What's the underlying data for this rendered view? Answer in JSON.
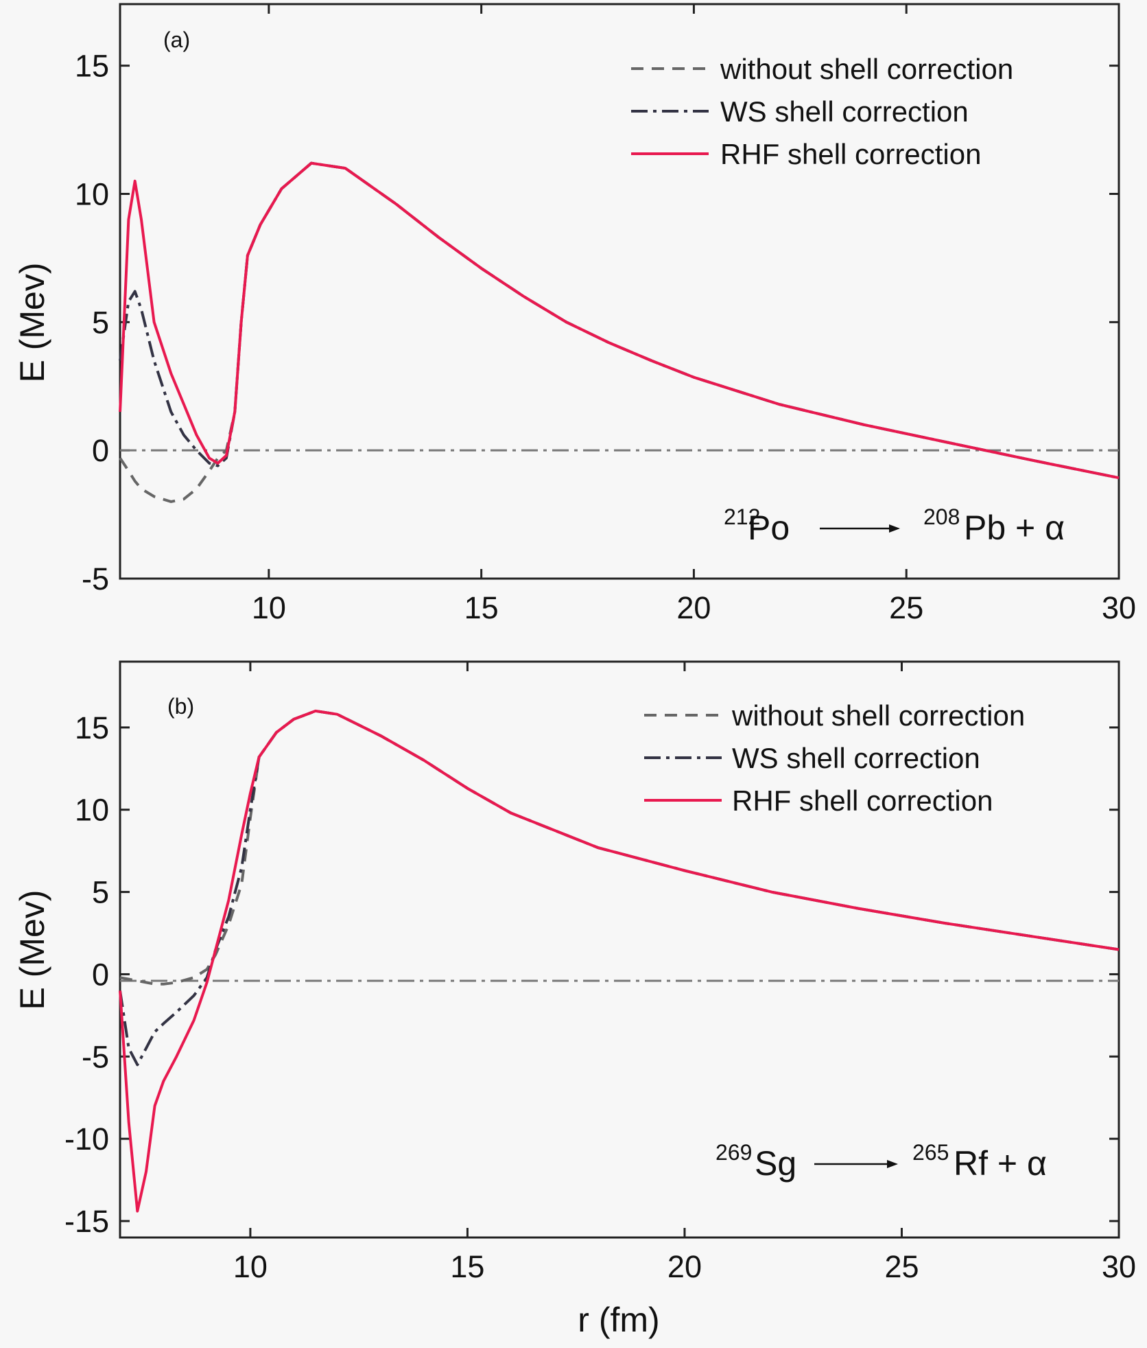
{
  "chart_data": [
    {
      "type": "line",
      "panel_label": "(a)",
      "y_label": "E (Mev)",
      "reaction": {
        "parent_mass": "212",
        "parent": "Po",
        "daughter_mass": "208",
        "daughter": "Pb + α"
      },
      "xlim": [
        6.5,
        30
      ],
      "ylim": [
        -5,
        17.4
      ],
      "xticks": [
        10,
        15,
        20,
        25,
        30
      ],
      "yticks": [
        -5,
        0,
        5,
        10,
        15
      ],
      "hline": 0,
      "hline_color": "#777777",
      "legend": "upper right",
      "x": [
        6.5,
        6.7,
        6.85,
        7.0,
        7.3,
        7.7,
        8.0,
        8.3,
        8.6,
        8.8,
        9.0,
        9.2,
        9.35,
        9.5,
        9.8,
        10.3,
        11.0,
        11.8,
        13,
        14,
        15,
        16,
        17,
        18,
        19,
        20,
        22,
        24,
        26,
        28,
        30
      ],
      "series": [
        {
          "name": "without shell correction",
          "color": "#666666",
          "dash": "dashed",
          "values": [
            -0.3,
            -0.8,
            -1.2,
            -1.5,
            -1.8,
            -2.0,
            -1.9,
            -1.5,
            -0.8,
            -0.3,
            0.0,
            1.5,
            5.0,
            7.6,
            8.8,
            10.2,
            11.2,
            11.0,
            9.6,
            8.3,
            7.1,
            6.0,
            5.0,
            4.2,
            3.5,
            2.85,
            1.8,
            1.0,
            0.3,
            -0.4,
            -1.07
          ]
        },
        {
          "name": "WS shell correction",
          "color": "#333344",
          "dash": "dashdot",
          "values": [
            3.5,
            5.8,
            6.2,
            5.5,
            3.5,
            1.5,
            0.6,
            0.0,
            -0.5,
            -0.6,
            -0.3,
            1.5,
            5.0,
            7.6,
            8.8,
            10.2,
            11.2,
            11.0,
            9.6,
            8.3,
            7.1,
            6.0,
            5.0,
            4.2,
            3.5,
            2.85,
            1.8,
            1.0,
            0.3,
            -0.4,
            -1.07
          ]
        },
        {
          "name": "RHF shell correction",
          "color": "#e8194f",
          "dash": "solid",
          "values": [
            1.5,
            9.0,
            10.5,
            9.0,
            5.0,
            3.0,
            1.8,
            0.6,
            -0.3,
            -0.5,
            -0.2,
            1.5,
            5.0,
            7.6,
            8.8,
            10.2,
            11.2,
            11.0,
            9.6,
            8.3,
            7.1,
            6.0,
            5.0,
            4.2,
            3.5,
            2.85,
            1.8,
            1.0,
            0.3,
            -0.4,
            -1.07
          ]
        }
      ]
    },
    {
      "type": "line",
      "panel_label": "(b)",
      "y_label": "E (Mev)",
      "x_label": "r (fm)",
      "reaction": {
        "parent_mass": "269",
        "parent": "Sg",
        "daughter_mass": "265",
        "daughter": "Rf + α"
      },
      "xlim": [
        7,
        30
      ],
      "ylim": [
        -16,
        19
      ],
      "xticks": [
        10,
        15,
        20,
        25,
        30
      ],
      "yticks": [
        -15,
        -10,
        -5,
        0,
        5,
        10,
        15
      ],
      "hline": -0.4,
      "hline_color": "#777777",
      "legend": "upper right",
      "x": [
        7.0,
        7.2,
        7.4,
        7.6,
        7.8,
        8.0,
        8.3,
        8.7,
        9.0,
        9.2,
        9.5,
        9.8,
        10.0,
        10.2,
        10.6,
        11.0,
        11.5,
        12,
        13,
        14,
        15,
        16,
        18,
        20,
        22,
        24,
        26,
        28,
        30
      ],
      "series": [
        {
          "name": "without shell correction",
          "color": "#666666",
          "dash": "dashed",
          "values": [
            -0.2,
            -0.3,
            -0.4,
            -0.5,
            -0.6,
            -0.6,
            -0.5,
            -0.2,
            0.3,
            1.2,
            3.0,
            5.5,
            9.5,
            13.2,
            14.7,
            15.5,
            16.0,
            15.8,
            14.5,
            13,
            11.3,
            9.8,
            7.7,
            6.3,
            5.0,
            4.0,
            3.1,
            2.3,
            1.5
          ]
        },
        {
          "name": "WS shell correction",
          "color": "#333344",
          "dash": "dashdot",
          "values": [
            -1,
            -4.5,
            -5.5,
            -4.5,
            -3.5,
            -3.0,
            -2.3,
            -1.3,
            -0.2,
            1.5,
            3.5,
            6.5,
            10,
            13.2,
            14.7,
            15.5,
            16.0,
            15.8,
            14.5,
            13,
            11.3,
            9.8,
            7.7,
            6.3,
            5.0,
            4.0,
            3.1,
            2.3,
            1.5
          ]
        },
        {
          "name": "RHF shell correction",
          "color": "#e8194f",
          "dash": "solid",
          "values": [
            -1,
            -9,
            -14.4,
            -12,
            -8,
            -6.5,
            -5,
            -2.8,
            -0.5,
            1.5,
            4.5,
            8.5,
            11,
            13.2,
            14.7,
            15.5,
            16.0,
            15.8,
            14.5,
            13,
            11.3,
            9.8,
            7.7,
            6.3,
            5.0,
            4.0,
            3.1,
            2.3,
            1.5
          ]
        }
      ]
    }
  ]
}
